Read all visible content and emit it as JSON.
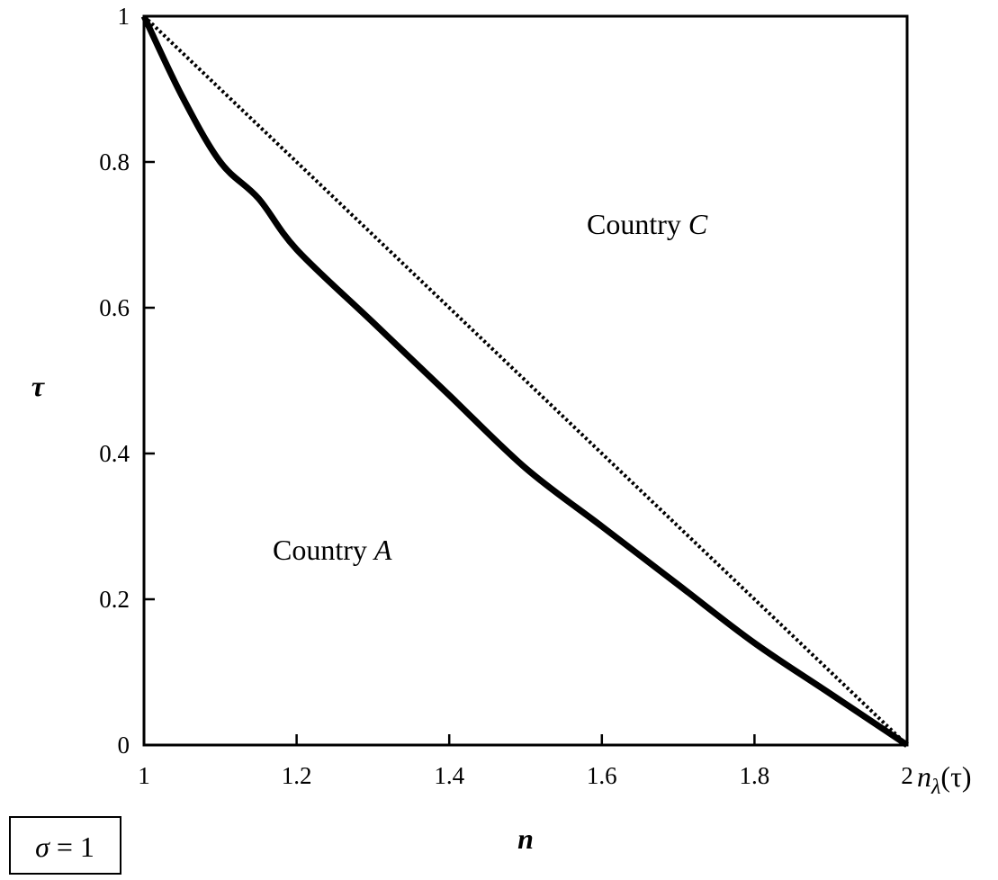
{
  "chart_data": {
    "type": "line",
    "xlabel": "n",
    "ylabel": "τ",
    "xlim": [
      1,
      2
    ],
    "ylim": [
      0,
      1
    ],
    "x_ticks": [
      "1",
      "1.2",
      "1.4",
      "1.6",
      "1.8",
      "2"
    ],
    "y_ticks": [
      "0",
      "0.2",
      "0.4",
      "0.6",
      "0.8",
      "1"
    ],
    "grid": false,
    "series": [
      {
        "name": "",
        "style": "solid",
        "color": "#000000",
        "x": [
          1.0,
          1.05,
          1.1,
          1.15,
          1.2,
          1.3,
          1.4,
          1.5,
          1.6,
          1.7,
          1.8,
          1.9,
          2.0
        ],
        "y": [
          1.0,
          0.89,
          0.8,
          0.75,
          0.68,
          0.58,
          0.48,
          0.38,
          0.3,
          0.22,
          0.14,
          0.07,
          0.0
        ]
      },
      {
        "name": "",
        "style": "dotted",
        "color": "#000000",
        "x": [
          1.0,
          1.2,
          1.4,
          1.6,
          1.8,
          2.0
        ],
        "y": [
          1.0,
          0.8,
          0.6,
          0.4,
          0.2,
          0.0
        ]
      }
    ],
    "annotations": {
      "region_c": {
        "prefix": "Country ",
        "name": "C"
      },
      "region_a": {
        "prefix": "Country ",
        "name": "A"
      },
      "curve_label": {
        "base": "n",
        "sub": "λ",
        "arg": "(τ)"
      },
      "parameter": {
        "symbol": "σ",
        "eq": " = 1"
      }
    }
  }
}
